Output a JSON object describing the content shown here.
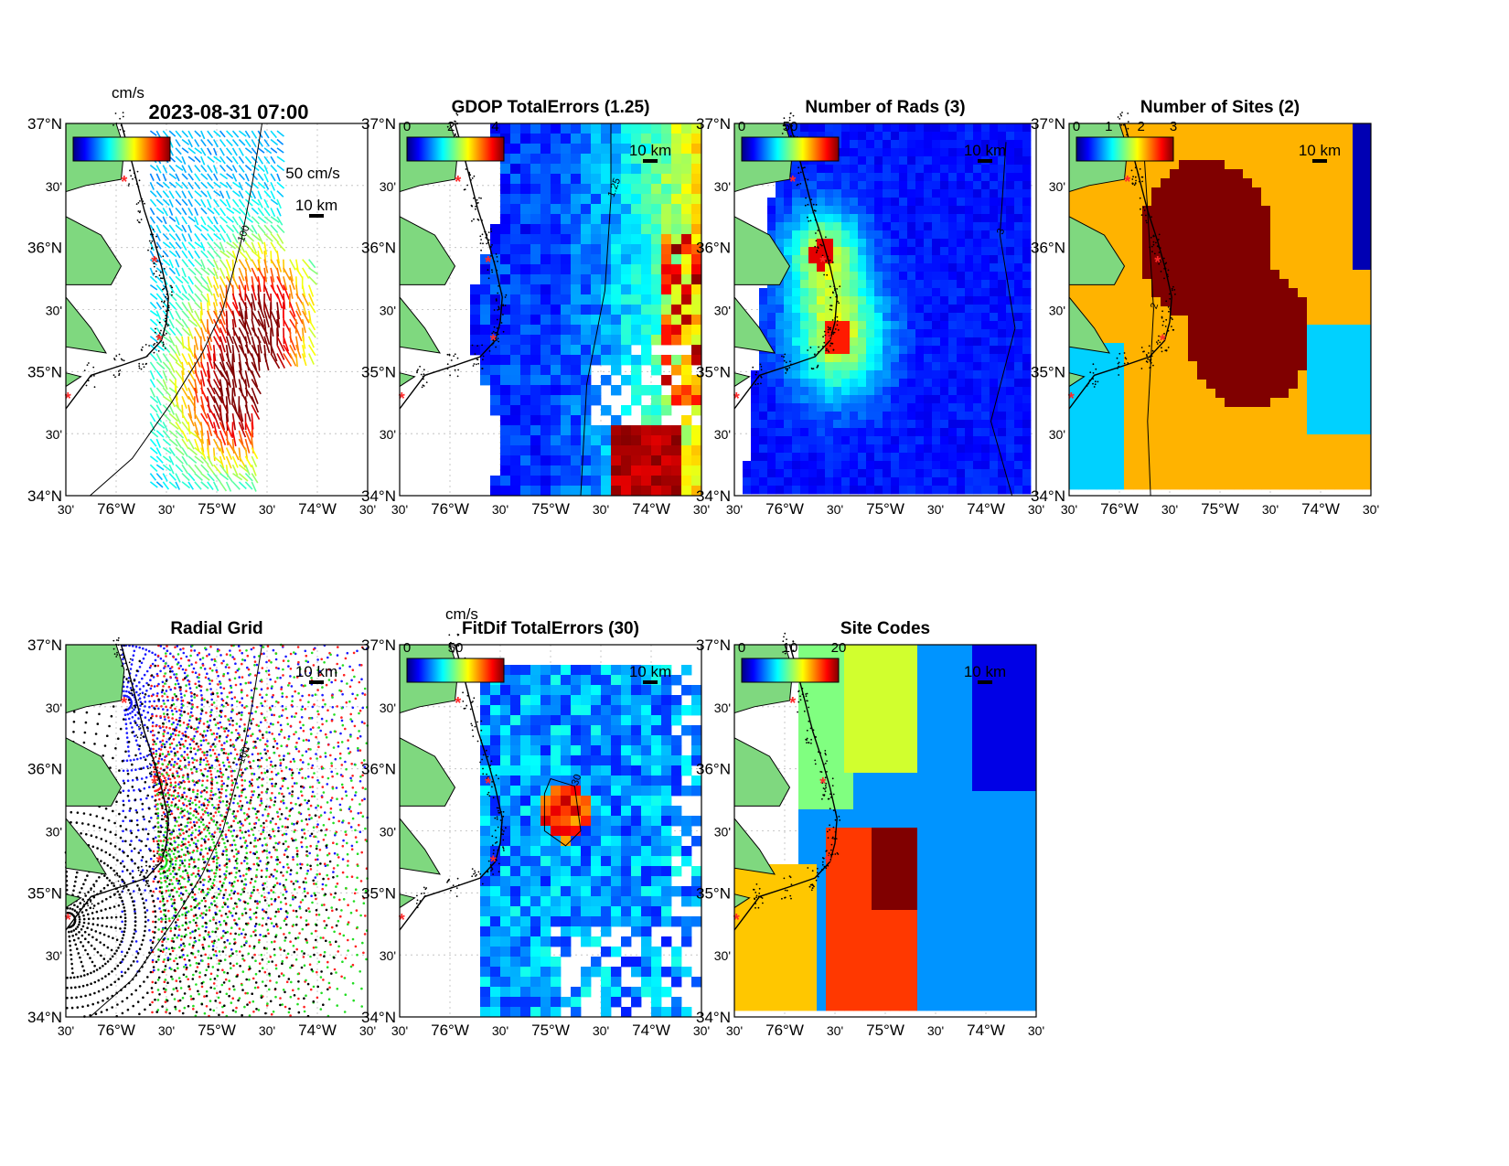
{
  "figure": {
    "timestamp": "2023-08-31 07:00",
    "panels": [
      {
        "id": "currents",
        "title": "",
        "colorbar_label": "cm/s",
        "colorbar_ticks": [],
        "scale_text": "10 km",
        "vector_scale": "50 cm/s",
        "contour_label": "100",
        "colormap": "jet"
      },
      {
        "id": "gdop",
        "title": "GDOP TotalErrors (1.25)",
        "colorbar_label": "",
        "colorbar_ticks": [
          "0",
          "2",
          "4"
        ],
        "scale_text": "10 km",
        "contour_label": "1.25",
        "colormap": "jet"
      },
      {
        "id": "nrads",
        "title": "Number of Rads (3)",
        "colorbar_label": "",
        "colorbar_ticks": [
          "0",
          "50"
        ],
        "scale_text": "10 km",
        "contour_label": "3",
        "colormap": "jet"
      },
      {
        "id": "nsites",
        "title": "Number of Sites (2)",
        "colorbar_label": "",
        "colorbar_ticks": [
          "0",
          "1",
          "2",
          "3"
        ],
        "scale_text": "10 km",
        "contour_label": "2",
        "colormap": "jet"
      },
      {
        "id": "radgrid",
        "title": "Radial Grid",
        "colorbar_label": "",
        "colorbar_ticks": [],
        "scale_text": "10 km",
        "contour_label": "100",
        "colormap": ""
      },
      {
        "id": "fitdif",
        "title": "FitDif TotalErrors (30)",
        "colorbar_label": "cm/s",
        "colorbar_ticks": [
          "0",
          "50"
        ],
        "scale_text": "10 km",
        "contour_label": "30",
        "colormap": "jet"
      },
      {
        "id": "sitecodes",
        "title": "Site Codes",
        "colorbar_label": "",
        "colorbar_ticks": [
          "0",
          "10",
          "20"
        ],
        "scale_text": "10 km",
        "contour_label": "",
        "colormap": "jet"
      }
    ],
    "lat_ticks": [
      "37°N",
      "30'",
      "36°N",
      "30'",
      "35°N",
      "30'",
      "34°N"
    ],
    "lon_ticks": [
      "30'",
      "76°W",
      "30'",
      "75°W",
      "30'",
      "74°W",
      "30'"
    ],
    "colors": {
      "land": "#7fd87f",
      "water": "#ffffff",
      "site_marker": "#ff2a2a",
      "site_blue": "#1a1aff",
      "site_red": "#ff2020",
      "site_green": "#22dd22",
      "site_black": "#000000"
    }
  }
}
